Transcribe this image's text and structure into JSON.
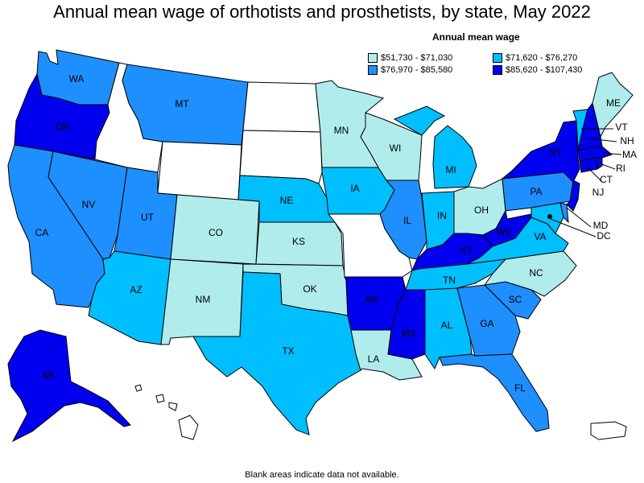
{
  "title": "Annual mean wage of orthotists and prosthetists, by state, May 2022",
  "legend": {
    "title": "Annual mean wage",
    "items": [
      {
        "label": "$51,730 - $71,030",
        "color": "#b0ecec"
      },
      {
        "label": "$71,620 - $76,270",
        "color": "#00bfff"
      },
      {
        "label": "$76,970 - $85,580",
        "color": "#1e8fff"
      },
      {
        "label": "$85,620 - $107,430",
        "color": "#0000ee"
      }
    ]
  },
  "footnote": "Blank areas indicate data not available.",
  "colors": {
    "tier1": "#b0ecec",
    "tier2": "#00bfff",
    "tier3": "#1e8fff",
    "tier4": "#0000ee",
    "blank": "#ffffff"
  },
  "states": {
    "WA": {
      "label": "WA",
      "tier": "tier3"
    },
    "OR": {
      "label": "OR",
      "tier": "tier4"
    },
    "CA": {
      "label": "CA",
      "tier": "tier3"
    },
    "NV": {
      "label": "NV",
      "tier": "tier3"
    },
    "ID": {
      "label": "",
      "tier": "blank"
    },
    "MT": {
      "label": "MT",
      "tier": "tier3"
    },
    "WY": {
      "label": "",
      "tier": "blank"
    },
    "UT": {
      "label": "UT",
      "tier": "tier3"
    },
    "AZ": {
      "label": "AZ",
      "tier": "tier2"
    },
    "CO": {
      "label": "CO",
      "tier": "tier1"
    },
    "NM": {
      "label": "NM",
      "tier": "tier1"
    },
    "ND": {
      "label": "",
      "tier": "blank"
    },
    "SD": {
      "label": "",
      "tier": "blank"
    },
    "NE": {
      "label": "NE",
      "tier": "tier2"
    },
    "KS": {
      "label": "KS",
      "tier": "tier1"
    },
    "OK": {
      "label": "OK",
      "tier": "tier1"
    },
    "TX": {
      "label": "TX",
      "tier": "tier2"
    },
    "MN": {
      "label": "MN",
      "tier": "tier1"
    },
    "IA": {
      "label": "IA",
      "tier": "tier2"
    },
    "MO": {
      "label": "",
      "tier": "blank"
    },
    "AR": {
      "label": "AR",
      "tier": "tier4"
    },
    "LA": {
      "label": "LA",
      "tier": "tier1"
    },
    "WI": {
      "label": "WI",
      "tier": "tier1"
    },
    "IL": {
      "label": "IL",
      "tier": "tier3"
    },
    "MI": {
      "label": "MI",
      "tier": "tier2"
    },
    "IN": {
      "label": "IN",
      "tier": "tier2"
    },
    "OH": {
      "label": "OH",
      "tier": "tier1"
    },
    "KY": {
      "label": "KY",
      "tier": "tier4"
    },
    "TN": {
      "label": "TN",
      "tier": "tier2"
    },
    "MS": {
      "label": "MS",
      "tier": "tier4"
    },
    "AL": {
      "label": "AL",
      "tier": "tier2"
    },
    "GA": {
      "label": "GA",
      "tier": "tier3"
    },
    "FL": {
      "label": "FL",
      "tier": "tier3"
    },
    "SC": {
      "label": "SC",
      "tier": "tier3"
    },
    "NC": {
      "label": "NC",
      "tier": "tier1"
    },
    "VA": {
      "label": "VA",
      "tier": "tier2"
    },
    "WV": {
      "label": "WV",
      "tier": "tier4"
    },
    "PA": {
      "label": "PA",
      "tier": "tier3"
    },
    "NY": {
      "label": "NY",
      "tier": "tier4"
    },
    "NJ": {
      "label": "NJ",
      "tier": "tier4"
    },
    "DE": {
      "label": "",
      "tier": "tier3"
    },
    "MD": {
      "label": "MD",
      "tier": "tier2"
    },
    "DC": {
      "label": "DC",
      "tier": "tier4"
    },
    "CT": {
      "label": "CT",
      "tier": "tier4"
    },
    "RI": {
      "label": "RI",
      "tier": "tier4"
    },
    "MA": {
      "label": "MA",
      "tier": "tier4"
    },
    "VT": {
      "label": "VT",
      "tier": "tier2"
    },
    "NH": {
      "label": "NH",
      "tier": "tier4"
    },
    "ME": {
      "label": "ME",
      "tier": "tier1"
    },
    "AK": {
      "label": "AK",
      "tier": "tier4"
    },
    "HI": {
      "label": "",
      "tier": "blank"
    },
    "PR": {
      "label": "",
      "tier": "blank"
    }
  }
}
